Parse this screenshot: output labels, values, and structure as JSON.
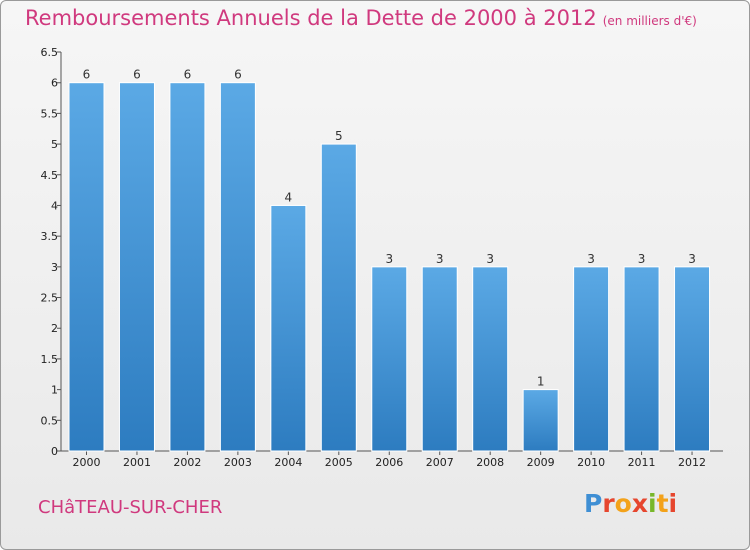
{
  "header": {
    "title": "Remboursements Annuels de la Dette de 2000 à 2012",
    "subtitle": "(en milliers d'€)"
  },
  "footer": {
    "commune": "CHâTEAU-SUR-CHER",
    "logo_letters": [
      "P",
      "r",
      "o",
      "x",
      "i",
      "t",
      "i"
    ]
  },
  "colors": {
    "title": "#d0397e",
    "bar_top": "#5ba9e5",
    "bar_bottom": "#2d7cc0"
  },
  "chart_data": {
    "type": "bar",
    "categories": [
      "2000",
      "2001",
      "2002",
      "2003",
      "2004",
      "2005",
      "2006",
      "2007",
      "2008",
      "2009",
      "2010",
      "2011",
      "2012"
    ],
    "values": [
      6,
      6,
      6,
      6,
      4,
      5,
      3,
      3,
      3,
      1,
      3,
      3,
      3
    ],
    "title": "Remboursements Annuels de la Dette de 2000 à 2012",
    "xlabel": "",
    "ylabel": "",
    "ylim": [
      0,
      6.5
    ],
    "yticks": [
      "0",
      "0.5",
      "1",
      "1.5",
      "2",
      "2.5",
      "3",
      "3.5",
      "4",
      "4.5",
      "5",
      "5.5",
      "6",
      "6.5"
    ],
    "grid": false,
    "legend": "none"
  }
}
